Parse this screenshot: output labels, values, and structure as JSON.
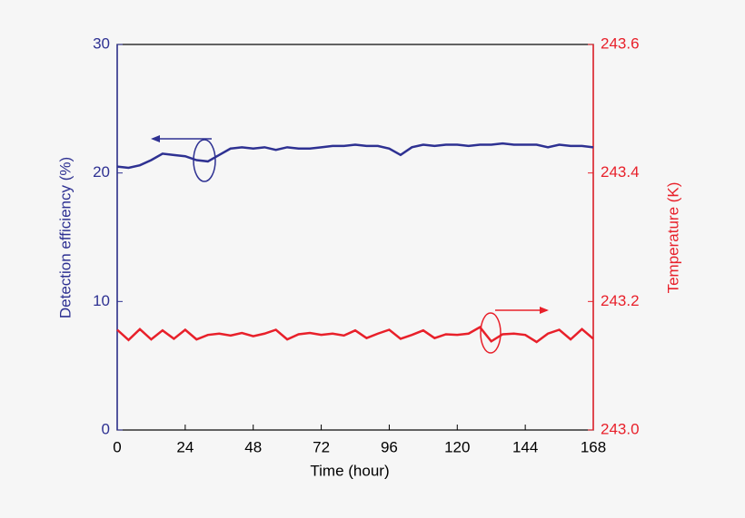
{
  "chart_data": {
    "type": "line",
    "x_label": "Time (hour)",
    "y_label": "Detection efficiency (%)",
    "y2_label": "Temperature (K)",
    "x": [
      0,
      4,
      8,
      12,
      16,
      20,
      24,
      28,
      32,
      36,
      40,
      44,
      48,
      52,
      56,
      60,
      64,
      68,
      72,
      76,
      80,
      84,
      88,
      92,
      96,
      100,
      104,
      108,
      112,
      116,
      120,
      124,
      128,
      132,
      136,
      140,
      144,
      148,
      152,
      156,
      160,
      164,
      168
    ],
    "xlim": [
      0,
      168
    ],
    "xticks": [
      0,
      24,
      48,
      72,
      96,
      120,
      144,
      168
    ],
    "ylim": [
      0,
      30
    ],
    "yticks": [
      0,
      10,
      20,
      30
    ],
    "y2lim": [
      243.0,
      243.6
    ],
    "y2ticks": [
      {
        "value": 243.0,
        "label": "243.0"
      },
      243.2,
      243.4,
      243.6
    ],
    "series": [
      {
        "name": "Detection efficiency",
        "color": "#2e3192",
        "axis": "y",
        "values": [
          20.5,
          20.4,
          20.6,
          21.0,
          21.5,
          21.4,
          21.3,
          21.0,
          20.9,
          21.4,
          21.9,
          22.0,
          21.9,
          22.0,
          21.8,
          22.0,
          21.9,
          21.9,
          22.0,
          22.1,
          22.1,
          22.2,
          22.1,
          22.1,
          21.9,
          21.4,
          22.0,
          22.2,
          22.1,
          22.2,
          22.2,
          22.1,
          22.2,
          22.2,
          22.3,
          22.2,
          22.2,
          22.2,
          22.0,
          22.2,
          22.1,
          22.1,
          22.0
        ]
      },
      {
        "name": "Temperature",
        "color": "#e8202a",
        "axis": "y2",
        "values": [
          243.156,
          243.14,
          243.157,
          243.141,
          243.155,
          243.142,
          243.156,
          243.141,
          243.148,
          243.15,
          243.147,
          243.151,
          243.146,
          243.15,
          243.156,
          243.141,
          243.149,
          243.151,
          243.148,
          243.15,
          243.147,
          243.155,
          243.143,
          243.15,
          243.156,
          243.142,
          243.148,
          243.155,
          243.143,
          243.149,
          243.148,
          243.15,
          243.16,
          243.138,
          243.149,
          243.15,
          243.148,
          243.137,
          243.15,
          243.156,
          243.141,
          243.157,
          243.142
        ]
      }
    ]
  }
}
